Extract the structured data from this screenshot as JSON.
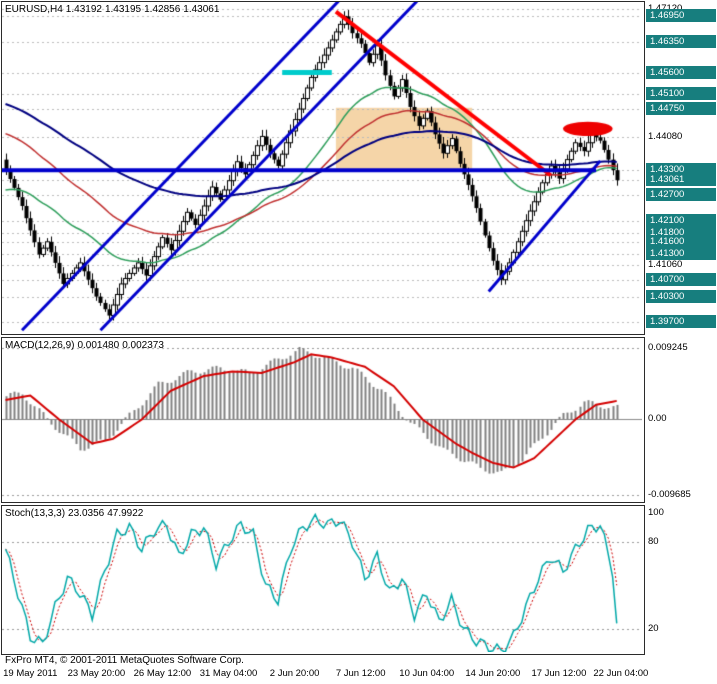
{
  "header": {
    "symbol_period": "EURUSD,H4",
    "open": "1.43192",
    "high": "1.43195",
    "low": "1.42856",
    "close": "1.43061"
  },
  "footer": {
    "copyright": "FxPro MT4, © 2001-2011 MetaQuotes Software Corp."
  },
  "colors": {
    "badge": "#177E7E",
    "grid": "#BBBBBB",
    "bull": "#FFFFFF",
    "bear": "#000000",
    "candle_outline": "#000000",
    "macd_hist": "#808080",
    "macd_signal": "#D40000",
    "stoch_main": "#00A8A8",
    "stoch_signal": "#CC0000",
    "panel_border": "#2B2B2B"
  },
  "chart_data": [
    {
      "type": "candlestick",
      "symbol": "EURUSD",
      "timeframe": "H4",
      "title": "EURUSD,H4 1.43192 1.43195 1.42856 1.43061",
      "ylim": [
        1.3946,
        1.4729
      ],
      "closes": [
        1.433,
        1.4309,
        1.4288,
        1.4266,
        1.4245,
        1.4216,
        1.4187,
        1.4159,
        1.413,
        1.4145,
        1.416,
        1.4135,
        1.411,
        1.4085,
        1.406,
        1.4073,
        1.4085,
        1.4098,
        1.411,
        1.409,
        1.407,
        1.405,
        1.403,
        1.4015,
        1.4,
        1.3985,
        1.401,
        1.4035,
        1.406,
        1.4073,
        1.4085,
        1.4098,
        1.411,
        1.4095,
        1.408,
        1.4103,
        1.4125,
        1.4148,
        1.417,
        1.4155,
        1.414,
        1.4163,
        1.4185,
        1.4208,
        1.423,
        1.4215,
        1.42,
        1.4223,
        1.4245,
        1.4268,
        1.429,
        1.4275,
        1.426,
        1.4283,
        1.4305,
        1.4328,
        1.435,
        1.4335,
        1.432,
        1.4343,
        1.4365,
        1.4388,
        1.441,
        1.439,
        1.437,
        1.4355,
        1.434,
        1.4368,
        1.4395,
        1.4423,
        1.445,
        1.4475,
        1.45,
        1.4525,
        1.455,
        1.4568,
        1.4585,
        1.4603,
        1.462,
        1.4639,
        1.4658,
        1.4676,
        1.4695,
        1.4675,
        1.4655,
        1.4643,
        1.463,
        1.4608,
        1.4585,
        1.4605,
        1.4625,
        1.459,
        1.4555,
        1.453,
        1.4505,
        1.4525,
        1.4545,
        1.4513,
        1.448,
        1.4458,
        1.4435,
        1.4453,
        1.447,
        1.4443,
        1.4415,
        1.4393,
        1.437,
        1.4388,
        1.4405,
        1.4375,
        1.4345,
        1.432,
        1.4295,
        1.4268,
        1.424,
        1.4208,
        1.4175,
        1.4145,
        1.4115,
        1.4093,
        1.407,
        1.409,
        1.411,
        1.4135,
        1.416,
        1.4185,
        1.421,
        1.4233,
        1.4255,
        1.4278,
        1.43,
        1.432,
        1.434,
        1.4325,
        1.431,
        1.4333,
        1.4355,
        1.4375,
        1.4395,
        1.4385,
        1.4375,
        1.4395,
        1.4415,
        1.4408,
        1.44,
        1.4378,
        1.4355,
        1.433,
        1.4306
      ],
      "price_levels": [
        {
          "price": 1.4712,
          "label": "1.47120",
          "style": "plain"
        },
        {
          "price": 1.4695,
          "label": "1.46950",
          "style": "badge"
        },
        {
          "price": 1.4635,
          "label": "1.46350",
          "style": "badge"
        },
        {
          "price": 1.456,
          "label": "1.45600",
          "style": "badge"
        },
        {
          "price": 1.451,
          "label": "1.45100",
          "style": "badge"
        },
        {
          "price": 1.4475,
          "label": "1.44750",
          "style": "badge"
        },
        {
          "price": 1.4408,
          "label": "1.44080",
          "style": "plain"
        },
        {
          "price": 1.433,
          "label": "1.43300",
          "style": "badge"
        },
        {
          "price": 1.43061,
          "label": "1.43061",
          "style": "current"
        },
        {
          "price": 1.427,
          "label": "1.42700",
          "style": "badge"
        },
        {
          "price": 1.421,
          "label": "1.42100",
          "style": "badge"
        },
        {
          "price": 1.418,
          "label": "1.41800",
          "style": "badge"
        },
        {
          "price": 1.416,
          "label": "1.41600",
          "style": "badge"
        },
        {
          "price": 1.413,
          "label": "1.41300",
          "style": "badge"
        },
        {
          "price": 1.4106,
          "label": "1.41060",
          "style": "plain"
        },
        {
          "price": 1.407,
          "label": "1.40700",
          "style": "badge"
        },
        {
          "price": 1.403,
          "label": "1.40300",
          "style": "badge"
        },
        {
          "price": 1.397,
          "label": "1.39700",
          "style": "badge"
        }
      ],
      "time_labels": [
        {
          "text": "19 May 2011",
          "bar": 6
        },
        {
          "text": "23 May 20:00",
          "bar": 22
        },
        {
          "text": "26 May 12:00",
          "bar": 38
        },
        {
          "text": "31 May 04:00",
          "bar": 54
        },
        {
          "text": "2 Jun 20:00",
          "bar": 70
        },
        {
          "text": "7 Jun 12:00",
          "bar": 86
        },
        {
          "text": "10 Jun 04:00",
          "bar": 102
        },
        {
          "text": "14 Jun 20:00",
          "bar": 118
        },
        {
          "text": "17 Jun 12:00",
          "bar": 134
        },
        {
          "text": "22 Jun 04:00",
          "bar": 149
        }
      ],
      "overlays": {
        "moving_averages": [
          {
            "name": "ma-fast-green",
            "period": 34,
            "seed": 1.428,
            "color": "#2E9E5B",
            "width": 1.5
          },
          {
            "name": "ma-medium-red",
            "period": 55,
            "seed": 1.442,
            "color": "#C03030",
            "width": 1.5
          },
          {
            "name": "ma-slow-navy",
            "period": 100,
            "seed": 1.449,
            "color": "#000080",
            "width": 2
          }
        ]
      },
      "annotations": {
        "rectangle": {
          "name": "highlight-rectangle",
          "b1": 80,
          "b2": 113,
          "p1": 1.433,
          "p2": 1.4478,
          "color": "#F5D5A8"
        },
        "lines": [
          {
            "name": "channel-line-left-blue",
            "b1": 4,
            "p1": 1.395,
            "b2": 82,
            "p2": 1.4745,
            "color": "#0000CC",
            "width": 3
          },
          {
            "name": "channel-line-right-blue",
            "b1": 23,
            "p1": 1.395,
            "b2": 101,
            "p2": 1.4745,
            "color": "#0000CC",
            "width": 3
          },
          {
            "name": "resistance-trendline-red",
            "b1": 80,
            "p1": 1.4706,
            "b2": 132,
            "p2": 1.4318,
            "color": "#FF0000",
            "width": 4
          },
          {
            "name": "support-trendline-blue",
            "b1": 117,
            "p1": 1.4042,
            "b2": 144,
            "p2": 1.4352,
            "color": "#0000CC",
            "width": 3
          },
          {
            "name": "horizontal-level-blue",
            "b1": -1,
            "p1": 1.433,
            "b2": 143,
            "p2": 1.433,
            "color": "#0000CC",
            "width": 4
          },
          {
            "name": "cyan-segment",
            "b1": 67,
            "p1": 1.4562,
            "b2": 79,
            "p2": 1.4562,
            "color": "#00CCCC",
            "width": 5
          }
        ],
        "ellipse": {
          "name": "red-ellipse",
          "cb": 141,
          "cp": 1.4428,
          "rb": 6,
          "rp": 0.0017,
          "color": "#EE0000"
        }
      }
    },
    {
      "type": "macd",
      "label": "MACD(12,26,9)",
      "main_value": "0.001480",
      "signal_value": "0.002373",
      "ylim": [
        -0.010385,
        0.010511
      ],
      "axis_ticks": [
        {
          "v": 0.009245,
          "label": "0.009245"
        },
        {
          "v": 0,
          "label": "0.00"
        },
        {
          "v": -0.009685,
          "label": "-0.009685"
        }
      ],
      "histogram_waypoints": [
        [
          0,
          0.003
        ],
        [
          4,
          0.0034
        ],
        [
          10,
          0.0
        ],
        [
          18,
          -0.0038
        ],
        [
          24,
          -0.0028
        ],
        [
          30,
          0.0005
        ],
        [
          37,
          0.0045
        ],
        [
          45,
          0.0062
        ],
        [
          52,
          0.0066
        ],
        [
          59,
          0.006
        ],
        [
          67,
          0.008
        ],
        [
          71,
          0.009
        ],
        [
          76,
          0.0082
        ],
        [
          84,
          0.0066
        ],
        [
          91,
          0.0038
        ],
        [
          98,
          -0.0005
        ],
        [
          106,
          -0.004
        ],
        [
          110,
          -0.005
        ],
        [
          115,
          -0.0063
        ],
        [
          120,
          -0.007
        ],
        [
          125,
          -0.0052
        ],
        [
          130,
          -0.0022
        ],
        [
          135,
          0.0005
        ],
        [
          140,
          0.0022
        ],
        [
          148,
          0.0015
        ]
      ],
      "signal_waypoints": [
        [
          0,
          0.0025
        ],
        [
          6,
          0.0031
        ],
        [
          13,
          0.0
        ],
        [
          21,
          -0.0031
        ],
        [
          26,
          -0.0025
        ],
        [
          33,
          0.0
        ],
        [
          40,
          0.0037
        ],
        [
          48,
          0.0056
        ],
        [
          55,
          0.0062
        ],
        [
          62,
          0.006
        ],
        [
          70,
          0.0074
        ],
        [
          74,
          0.0084
        ],
        [
          79,
          0.008
        ],
        [
          87,
          0.0068
        ],
        [
          94,
          0.0043
        ],
        [
          101,
          0.0
        ],
        [
          109,
          -0.0031
        ],
        [
          113,
          -0.0043
        ],
        [
          118,
          -0.0056
        ],
        [
          123,
          -0.0062
        ],
        [
          128,
          -0.005
        ],
        [
          133,
          -0.0025
        ],
        [
          138,
          0.0
        ],
        [
          143,
          0.0019
        ],
        [
          148,
          0.0024
        ]
      ]
    },
    {
      "type": "stochastic",
      "label": "Stoch(13,3,3)",
      "main_value": "23.0356",
      "signal_value": "47.9922",
      "ylim": [
        4.4,
        104.7
      ],
      "axis_ticks": [
        {
          "v": 100,
          "label": "100"
        },
        {
          "v": 80,
          "label": "80"
        },
        {
          "v": 20,
          "label": "20"
        }
      ],
      "levels": [
        80,
        20
      ],
      "main_waypoints": [
        [
          0,
          75
        ],
        [
          3,
          45
        ],
        [
          6,
          15
        ],
        [
          9,
          10
        ],
        [
          12,
          35
        ],
        [
          15,
          55
        ],
        [
          18,
          45
        ],
        [
          21,
          30
        ],
        [
          24,
          60
        ],
        [
          27,
          85
        ],
        [
          30,
          90
        ],
        [
          33,
          75
        ],
        [
          36,
          88
        ],
        [
          39,
          92
        ],
        [
          42,
          70
        ],
        [
          45,
          85
        ],
        [
          48,
          90
        ],
        [
          51,
          65
        ],
        [
          54,
          80
        ],
        [
          57,
          92
        ],
        [
          60,
          85
        ],
        [
          63,
          50
        ],
        [
          66,
          40
        ],
        [
          69,
          75
        ],
        [
          72,
          90
        ],
        [
          75,
          95
        ],
        [
          78,
          92
        ],
        [
          81,
          95
        ],
        [
          84,
          80
        ],
        [
          87,
          55
        ],
        [
          90,
          70
        ],
        [
          93,
          45
        ],
        [
          96,
          55
        ],
        [
          99,
          30
        ],
        [
          102,
          45
        ],
        [
          105,
          25
        ],
        [
          108,
          40
        ],
        [
          111,
          20
        ],
        [
          114,
          12
        ],
        [
          117,
          8
        ],
        [
          120,
          5
        ],
        [
          123,
          15
        ],
        [
          126,
          35
        ],
        [
          129,
          55
        ],
        [
          132,
          70
        ],
        [
          135,
          60
        ],
        [
          138,
          75
        ],
        [
          141,
          88
        ],
        [
          144,
          92
        ],
        [
          147,
          60
        ],
        [
          148,
          23
        ]
      ]
    }
  ]
}
